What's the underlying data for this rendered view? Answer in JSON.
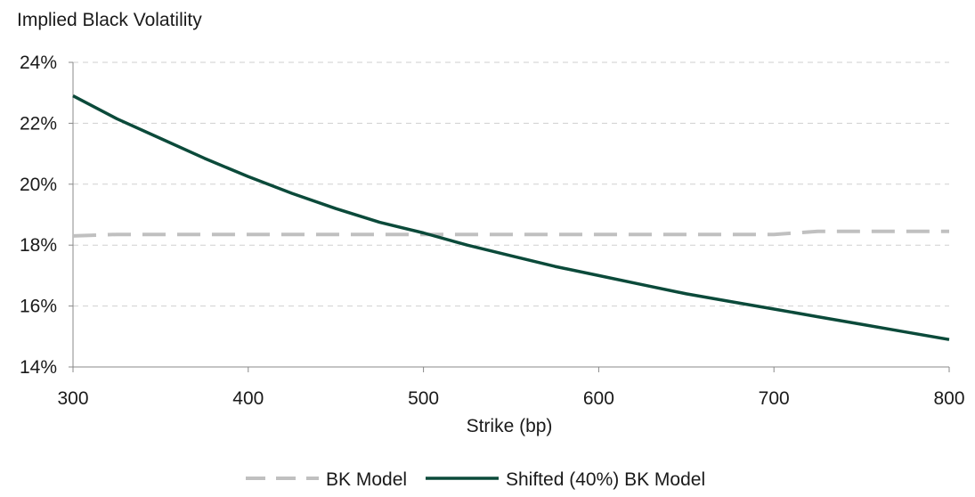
{
  "chart_data": {
    "type": "line",
    "title": "Implied Black Volatility",
    "xlabel": "Strike (bp)",
    "ylabel": "",
    "x": [
      300,
      325,
      350,
      375,
      400,
      425,
      450,
      475,
      500,
      525,
      550,
      575,
      600,
      625,
      650,
      675,
      700,
      725,
      750,
      775,
      800
    ],
    "xlim": [
      300,
      800
    ],
    "ylim": [
      14,
      24
    ],
    "x_ticks": [
      300,
      400,
      500,
      600,
      700,
      800
    ],
    "x_tick_labels": [
      "300",
      "400",
      "500",
      "600",
      "700",
      "800"
    ],
    "y_ticks": [
      14,
      16,
      18,
      20,
      22,
      24
    ],
    "y_tick_labels": [
      "14%",
      "16%",
      "18%",
      "20%",
      "22%",
      "24%"
    ],
    "grid": "horizontal dashed",
    "legend_position": "bottom",
    "series": [
      {
        "name": "BK Model",
        "color": "#c0c0c0",
        "style": "dashed",
        "values": [
          18.3,
          18.35,
          18.35,
          18.35,
          18.35,
          18.35,
          18.35,
          18.35,
          18.35,
          18.35,
          18.35,
          18.35,
          18.35,
          18.35,
          18.35,
          18.35,
          18.35,
          18.45,
          18.45,
          18.45,
          18.45
        ]
      },
      {
        "name": "Shifted (40%) BK Model",
        "color": "#0b4a3a",
        "style": "solid",
        "values": [
          22.9,
          22.15,
          21.5,
          20.85,
          20.25,
          19.7,
          19.2,
          18.75,
          18.4,
          18.0,
          17.65,
          17.3,
          17.0,
          16.7,
          16.4,
          16.15,
          15.9,
          15.65,
          15.4,
          15.15,
          14.9
        ]
      }
    ]
  }
}
